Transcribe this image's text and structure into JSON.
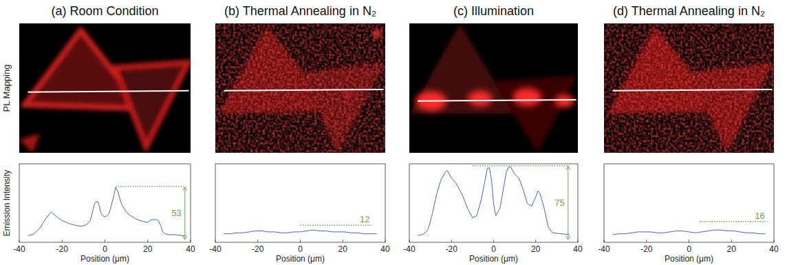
{
  "row_label": "PL Mapping",
  "chart_data": [
    {
      "type": "line",
      "title": "(a) Room Condition",
      "xlabel": "Position (μm)",
      "ylabel": "Emission Intensity",
      "xlim": [
        -40,
        40
      ],
      "xticks": [
        -40,
        -20,
        0,
        20,
        40
      ],
      "ylim": [
        -6,
        77
      ],
      "tick_labels": "x",
      "color": "#4b5fc7",
      "x": [
        -36,
        -33,
        -30,
        -28,
        -26,
        -25,
        -24,
        -22,
        -20,
        -17,
        -14,
        -11,
        -9,
        -7,
        -6,
        -5,
        -4,
        -3,
        -2,
        -1,
        0,
        1,
        2,
        3,
        4,
        5,
        6,
        7,
        8,
        10,
        12,
        15,
        18,
        20,
        21,
        22,
        23,
        24,
        25,
        26,
        27,
        28,
        30,
        33,
        36,
        38
      ],
      "values": [
        1,
        3,
        10,
        18,
        24,
        26,
        24,
        20,
        17,
        14,
        12,
        11,
        12,
        16,
        24,
        34,
        37,
        36,
        26,
        22,
        21,
        22,
        25,
        33,
        42,
        52,
        48,
        40,
        33,
        26,
        22,
        18,
        16,
        15,
        17,
        18,
        18,
        18,
        17,
        12,
        5,
        3,
        2,
        2,
        1,
        1
      ],
      "annotation": {
        "value": 53,
        "x": [
          5,
          38
        ]
      }
    },
    {
      "type": "line",
      "title": "(b) Thermal Annealing in N₂",
      "xlabel": "Position (μm)",
      "xlim": [
        -40,
        40
      ],
      "xticks": [
        -40,
        -20,
        0,
        20,
        40
      ],
      "ylim": [
        -6,
        77
      ],
      "tick_labels": "x",
      "color": "#4b5fc7",
      "x": [
        -36,
        -33,
        -30,
        -27,
        -24,
        -21,
        -18,
        -15,
        -12,
        -9,
        -6,
        -3,
        0,
        3,
        6,
        9,
        12,
        15,
        18,
        21,
        24,
        27,
        30,
        33,
        36
      ],
      "values": [
        3,
        3,
        4,
        4,
        5,
        6,
        6,
        5,
        5,
        4,
        4,
        5,
        5,
        6,
        7,
        6,
        6,
        5,
        5,
        5,
        4,
        4,
        3,
        3,
        3
      ],
      "annotation": {
        "value": 12,
        "x": [
          0,
          34
        ]
      }
    },
    {
      "type": "line",
      "title": "(c) Illumination",
      "xlabel": "Position (μm)",
      "xlim": [
        -40,
        40
      ],
      "xticks": [
        -40,
        -20,
        0,
        20,
        40
      ],
      "ylim": [
        -6,
        77
      ],
      "tick_labels": "x",
      "color": "#4b5fc7",
      "x": [
        -36,
        -33,
        -31,
        -29,
        -27,
        -25,
        -23,
        -22,
        -20,
        -18,
        -15,
        -12,
        -10,
        -8,
        -6,
        -4,
        -3,
        -2,
        -1,
        0,
        1,
        3,
        5,
        6,
        7,
        8,
        9,
        10,
        12,
        14,
        16,
        18,
        20,
        21,
        22,
        24,
        26,
        28,
        32,
        36
      ],
      "values": [
        1,
        3,
        8,
        25,
        45,
        60,
        68,
        70,
        62,
        57,
        45,
        28,
        20,
        22,
        38,
        60,
        72,
        73,
        60,
        35,
        22,
        30,
        55,
        68,
        73,
        74,
        70,
        66,
        62,
        50,
        35,
        32,
        42,
        48,
        46,
        30,
        10,
        4,
        3,
        2
      ],
      "annotation": {
        "value": 75,
        "x": [
          -10,
          36
        ]
      }
    },
    {
      "type": "line",
      "title": "(d) Thermal Annealing in N₂",
      "xlabel": "Position (μm)",
      "xlim": [
        -40,
        40
      ],
      "xticks": [
        -40,
        -20,
        0,
        20,
        40
      ],
      "ylim": [
        -6,
        77
      ],
      "tick_labels": "x",
      "color": "#4b5fc7",
      "x": [
        -36,
        -33,
        -30,
        -27,
        -24,
        -21,
        -18,
        -15,
        -12,
        -9,
        -6,
        -3,
        0,
        3,
        6,
        9,
        12,
        15,
        18,
        21,
        24,
        27,
        30,
        33,
        36
      ],
      "values": [
        2,
        3,
        3,
        4,
        5,
        5,
        5,
        4,
        4,
        5,
        6,
        6,
        5,
        4,
        5,
        6,
        7,
        7,
        6,
        6,
        5,
        4,
        4,
        3,
        3
      ],
      "annotation": {
        "value": 16,
        "x": [
          5,
          37
        ]
      }
    }
  ]
}
